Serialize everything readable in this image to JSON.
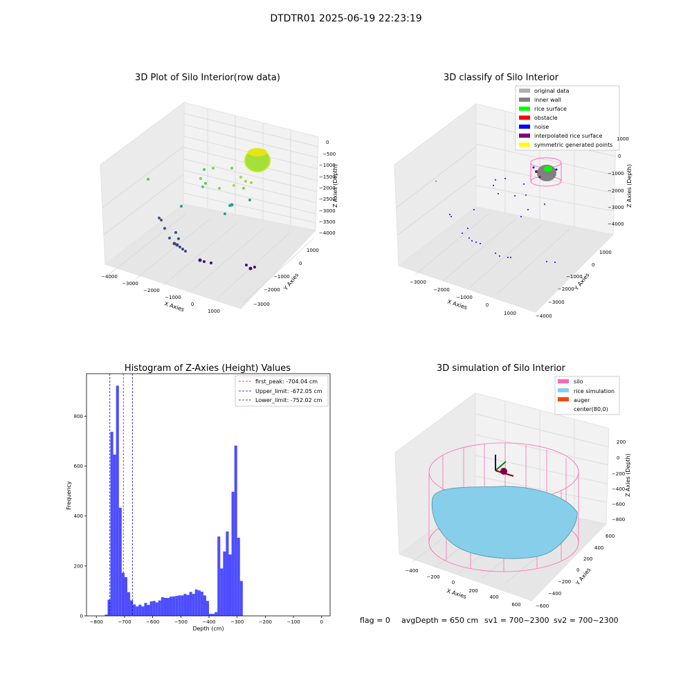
{
  "suptitle": "DTDTR01 2025-06-19 22:23:19",
  "footer": {
    "flag": "flag = 0",
    "avg": "avgDepth = 650 cm",
    "sv1": "sv1 = 700~2300",
    "sv2": "sv2 = 700~2300"
  },
  "colors": {
    "hist_bar": "#4d4dff",
    "first_peak": "#ff0000",
    "limits": "#0000cc",
    "silo": "#ff69b4",
    "rice": "#87ceeb",
    "auger": "#ff4500",
    "inner_wall": "#808080",
    "rice_surface": "#00ff00",
    "obstacle": "#ff0000",
    "noise": "#0000ff",
    "interp": "#800080",
    "symmetric": "#ffff00",
    "original": "#b0b0b0"
  },
  "chart_data": [
    {
      "type": "scatter",
      "title": "3D Plot of Silo Interior(row data)",
      "xlabel": "X Axies",
      "ylabel": "Y Axies",
      "zlabel": "Z Axies (Depth)",
      "xticks": [
        "−4000",
        "−3000",
        "−2000",
        "−1000",
        "0",
        "1000"
      ],
      "yticks": [
        "1000",
        "0",
        "−1000",
        "−2000",
        "−3000"
      ],
      "zticks": [
        "0",
        "−500",
        "−1000",
        "−1500",
        "−2000",
        "−2500",
        "−3000",
        "−3500",
        "−4000"
      ]
    },
    {
      "type": "scatter",
      "title": "3D classify of Silo Interior",
      "xlabel": "X Axies",
      "ylabel": "Y Axies",
      "zlabel": "Z Axies (Depth)",
      "xticks": [
        "−3000",
        "−2000",
        "−1000",
        "0",
        "1000"
      ],
      "yticks": [
        "1000",
        "0",
        "−1000",
        "−2000",
        "−3000",
        "−4000"
      ],
      "zticks": [
        "1000",
        "0",
        "−1000",
        "−2000",
        "−3000",
        "−4000"
      ],
      "legend": [
        "original data",
        "inner wall",
        "rice surface",
        "obstacle",
        "noise",
        "interpolated rice surface",
        "symmetric generated points"
      ],
      "legend_placement": "top-right"
    },
    {
      "type": "bar",
      "title": "Histogram of Z-Axies (Height) Values",
      "xlabel": "Depth (cm)",
      "ylabel": "Frequency",
      "xlim": [
        -835,
        30
      ],
      "ylim": [
        0,
        970
      ],
      "xticks": [
        -800,
        -700,
        -600,
        -500,
        -400,
        -300,
        -200,
        -100,
        0
      ],
      "yticks": [
        0,
        200,
        400,
        600,
        800
      ],
      "bin_start": -770,
      "bin_width": 10,
      "values": [
        5,
        65,
        737,
        646,
        922,
        433,
        173,
        155,
        95,
        62,
        46,
        38,
        45,
        38,
        52,
        44,
        58,
        60,
        54,
        62,
        75,
        72,
        72,
        77,
        78,
        80,
        82,
        82,
        88,
        84,
        96,
        88,
        106,
        102,
        97,
        82,
        60,
        8,
        8,
        15,
        318,
        190,
        258,
        338,
        246,
        497,
        682,
        313,
        140
      ],
      "lines": [
        {
          "label": "first_peak: -704.04 cm",
          "x": -704.04
        },
        {
          "label": "Upper_limit: -672.05 cm",
          "x": -672.05
        },
        {
          "label": "Lower_limit: -752.02 cm",
          "x": -752.02
        }
      ],
      "legend_placement": "top-right"
    },
    {
      "type": "area",
      "title": "3D simulation of Silo Interior",
      "xlabel": "X Axies",
      "ylabel": "Y Axies",
      "zlabel": "Z Axies (Depth)",
      "xticks": [
        "−400",
        "−200",
        "0",
        "200",
        "400",
        "600"
      ],
      "yticks": [
        "600",
        "400",
        "200",
        "0",
        "−200",
        "−400",
        "−600"
      ],
      "zticks": [
        "200",
        "0",
        "−200",
        "−400",
        "−600",
        "−800"
      ],
      "legend": [
        "silo",
        "rice simulation",
        "auger",
        "center(80,0)"
      ],
      "legend_placement": "top-right"
    }
  ]
}
